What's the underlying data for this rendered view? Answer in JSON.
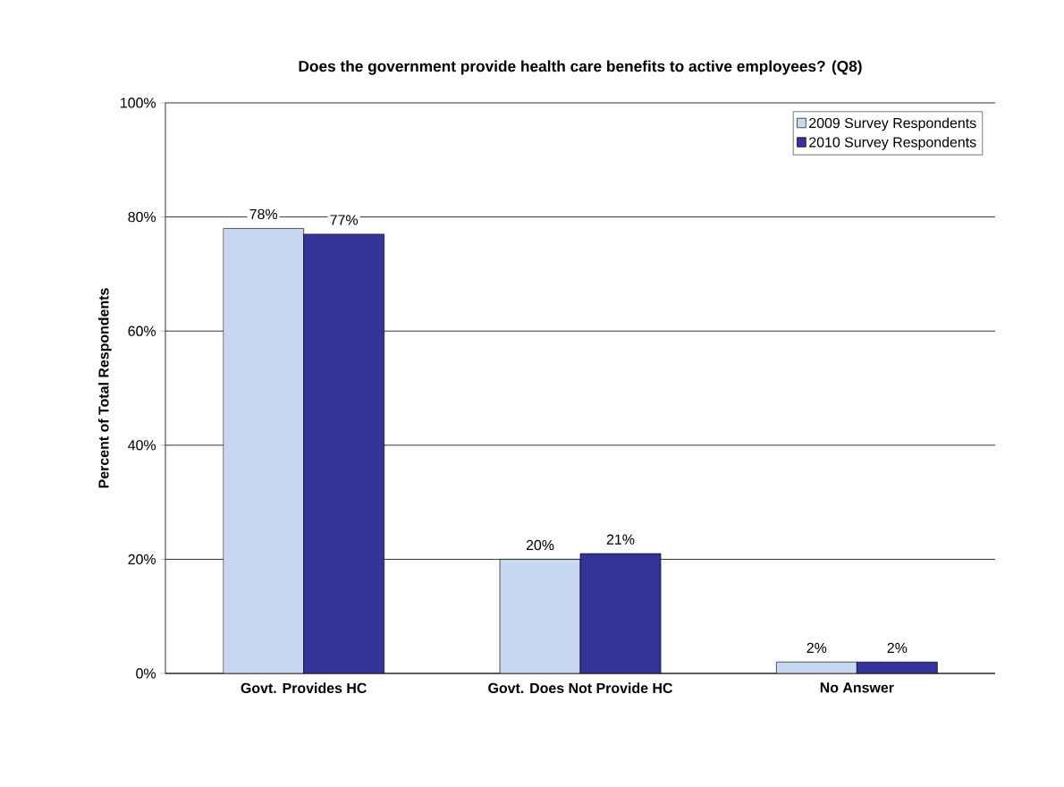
{
  "chart_data": {
    "type": "bar",
    "title": "Does the government provide health care benefits to active employees? (Q8)",
    "ylabel": "Percent of Total Respondents",
    "categories": [
      "Govt. Provides HC",
      "Govt. Does Not Provide HC",
      "No Answer"
    ],
    "series": [
      {
        "name": "2009 Survey Respondents",
        "color": "#c6d9f1",
        "values": [
          78,
          20,
          2
        ],
        "value_labels": [
          "78%",
          "20%",
          "2%"
        ]
      },
      {
        "name": "2010 Survey Respondents",
        "color": "#333399",
        "values": [
          77,
          21,
          2
        ],
        "value_labels": [
          "77%",
          "21%",
          "2%"
        ]
      }
    ],
    "ylim": [
      0,
      100
    ],
    "yticks": [
      {
        "value": 0,
        "label": "0%"
      },
      {
        "value": 20,
        "label": "20%"
      },
      {
        "value": 40,
        "label": "40%"
      },
      {
        "value": 60,
        "label": "60%"
      },
      {
        "value": 80,
        "label": "80%"
      },
      {
        "value": 100,
        "label": "100%"
      }
    ],
    "grid": "y",
    "legend": "top right"
  }
}
